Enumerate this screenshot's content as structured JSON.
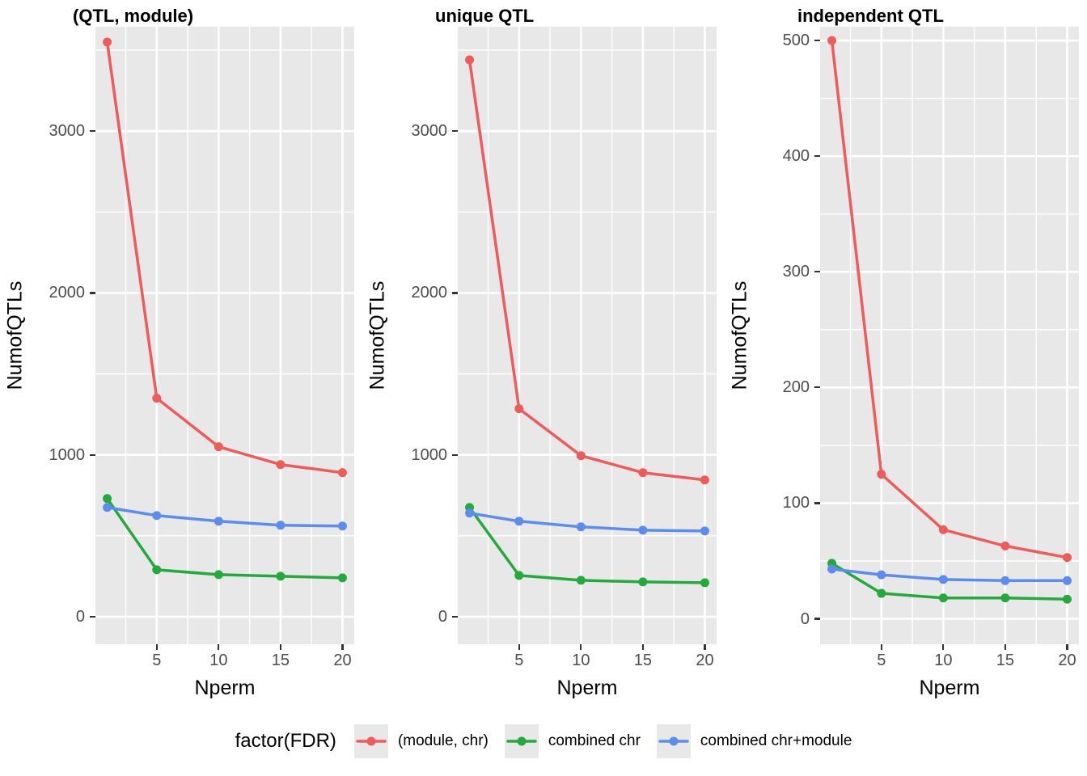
{
  "chart_data": [
    {
      "type": "line",
      "title": "(QTL, module)",
      "xlabel": "Nperm",
      "ylabel": "NumofQTLs",
      "x": [
        1,
        5,
        10,
        15,
        20
      ],
      "series": [
        {
          "name": "(module, chr)",
          "color": "#EF5A5B",
          "values": [
            3550,
            1350,
            1050,
            940,
            890
          ]
        },
        {
          "name": "combined chr",
          "color": "#23A93C",
          "values": [
            730,
            290,
            260,
            250,
            240
          ]
        },
        {
          "name": "combined chr+module",
          "color": "#5C8CEE",
          "values": [
            675,
            625,
            590,
            565,
            560
          ]
        }
      ],
      "xticks": [
        5,
        10,
        15,
        20
      ],
      "yticks": [
        0,
        1000,
        2000,
        3000
      ],
      "xlim": [
        0.05,
        20.95
      ],
      "ylim": [
        -170,
        3645
      ],
      "minor_x_step": 2.5,
      "minor_y_step": 500,
      "grid": true,
      "legend_position": "bottom"
    },
    {
      "type": "line",
      "title": "unique QTL",
      "xlabel": "Nperm",
      "ylabel": "NumofQTLs",
      "x": [
        1,
        5,
        10,
        15,
        20
      ],
      "series": [
        {
          "name": "(module, chr)",
          "color": "#EF5A5B",
          "values": [
            3440,
            1285,
            995,
            890,
            845
          ]
        },
        {
          "name": "combined chr",
          "color": "#23A93C",
          "values": [
            675,
            255,
            225,
            215,
            210
          ]
        },
        {
          "name": "combined chr+module",
          "color": "#5C8CEE",
          "values": [
            640,
            590,
            555,
            535,
            530
          ]
        }
      ],
      "xticks": [
        5,
        10,
        15,
        20
      ],
      "yticks": [
        0,
        1000,
        2000,
        3000
      ],
      "xlim": [
        0.05,
        20.95
      ],
      "ylim": [
        -170,
        3645
      ],
      "minor_x_step": 2.5,
      "minor_y_step": 500,
      "grid": true,
      "legend_position": "bottom"
    },
    {
      "type": "line",
      "title": "independent QTL",
      "xlabel": "Nperm",
      "ylabel": "NumofQTLs",
      "x": [
        1,
        5,
        10,
        15,
        20
      ],
      "series": [
        {
          "name": "(module, chr)",
          "color": "#EF5A5B",
          "values": [
            500,
            125,
            77,
            63,
            53
          ]
        },
        {
          "name": "combined chr",
          "color": "#23A93C",
          "values": [
            48,
            22,
            18,
            18,
            17
          ]
        },
        {
          "name": "combined chr+module",
          "color": "#5C8CEE",
          "values": [
            43,
            38,
            34,
            33,
            33
          ]
        }
      ],
      "xticks": [
        5,
        10,
        15,
        20
      ],
      "yticks": [
        0,
        100,
        200,
        300,
        400,
        500
      ],
      "xlim": [
        0.05,
        20.95
      ],
      "ylim": [
        -22,
        512
      ],
      "minor_x_step": 2.5,
      "minor_y_step": 50,
      "grid": true,
      "legend_position": "bottom"
    }
  ],
  "legend": {
    "title": "factor(FDR)",
    "entries": [
      {
        "label": "(module, chr)",
        "color": "#EF5A5B"
      },
      {
        "label": "combined chr",
        "color": "#23A93C"
      },
      {
        "label": "combined chr+module",
        "color": "#5C8CEE"
      }
    ]
  },
  "style": {
    "panel_background": "#E8E8E8",
    "grid_color": "#FFFFFF",
    "tick_label_color": "#4D4D4D",
    "tick_mark_color": "#333333"
  }
}
